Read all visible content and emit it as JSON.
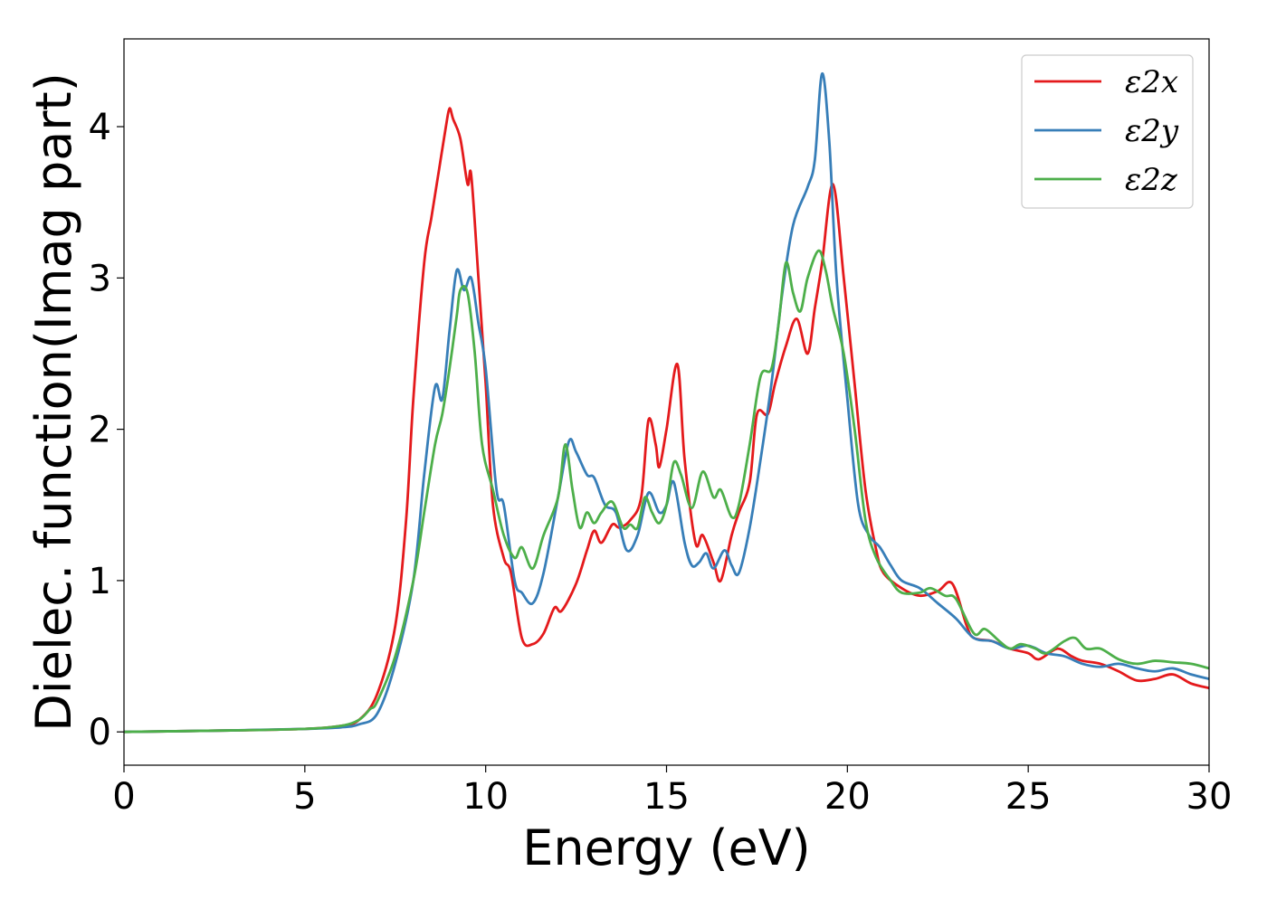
{
  "chart_data": {
    "type": "line",
    "title": "",
    "xlabel": "Energy (eV)",
    "ylabel": "Dielec. function(Imag part)",
    "xlim": [
      0,
      30
    ],
    "ylim": [
      -0.22,
      4.58
    ],
    "xticks": [
      0,
      5,
      10,
      15,
      20,
      25,
      30
    ],
    "xtick_labels": [
      "0",
      "5",
      "10",
      "15",
      "20",
      "25",
      "30"
    ],
    "yticks": [
      0,
      1,
      2,
      3,
      4
    ],
    "ytick_labels": [
      "0",
      "1",
      "2",
      "3",
      "4"
    ],
    "grid": false,
    "legend_position": "top-right",
    "series": [
      {
        "name": "ε2x",
        "color": "#e41a1c",
        "points": [
          [
            0,
            0
          ],
          [
            3,
            0.01
          ],
          [
            5,
            0.02
          ],
          [
            6,
            0.04
          ],
          [
            6.5,
            0.08
          ],
          [
            7,
            0.25
          ],
          [
            7.5,
            0.7
          ],
          [
            7.8,
            1.4
          ],
          [
            8,
            2.2
          ],
          [
            8.3,
            3.1
          ],
          [
            8.5,
            3.4
          ],
          [
            8.7,
            3.7
          ],
          [
            8.9,
            4.0
          ],
          [
            9.0,
            4.12
          ],
          [
            9.1,
            4.05
          ],
          [
            9.3,
            3.92
          ],
          [
            9.5,
            3.62
          ],
          [
            9.6,
            3.68
          ],
          [
            9.8,
            3.0
          ],
          [
            10.0,
            2.3
          ],
          [
            10.2,
            1.5
          ],
          [
            10.5,
            1.15
          ],
          [
            10.7,
            1.05
          ],
          [
            11.0,
            0.62
          ],
          [
            11.3,
            0.58
          ],
          [
            11.6,
            0.65
          ],
          [
            11.9,
            0.82
          ],
          [
            12.1,
            0.8
          ],
          [
            12.5,
            0.98
          ],
          [
            12.8,
            1.2
          ],
          [
            13.0,
            1.33
          ],
          [
            13.2,
            1.25
          ],
          [
            13.5,
            1.37
          ],
          [
            13.7,
            1.35
          ],
          [
            14.0,
            1.4
          ],
          [
            14.3,
            1.55
          ],
          [
            14.5,
            2.06
          ],
          [
            14.7,
            1.9
          ],
          [
            14.8,
            1.75
          ],
          [
            15.0,
            2.0
          ],
          [
            15.3,
            2.43
          ],
          [
            15.5,
            1.8
          ],
          [
            15.8,
            1.25
          ],
          [
            16.0,
            1.3
          ],
          [
            16.3,
            1.12
          ],
          [
            16.5,
            1.0
          ],
          [
            16.8,
            1.3
          ],
          [
            17.0,
            1.45
          ],
          [
            17.3,
            1.65
          ],
          [
            17.5,
            2.1
          ],
          [
            17.8,
            2.1
          ],
          [
            18.0,
            2.3
          ],
          [
            18.3,
            2.55
          ],
          [
            18.6,
            2.73
          ],
          [
            18.9,
            2.5
          ],
          [
            19.1,
            2.8
          ],
          [
            19.3,
            3.1
          ],
          [
            19.6,
            3.62
          ],
          [
            19.9,
            3.0
          ],
          [
            20.2,
            2.3
          ],
          [
            20.5,
            1.6
          ],
          [
            20.8,
            1.2
          ],
          [
            21.0,
            1.05
          ],
          [
            21.5,
            0.95
          ],
          [
            22.0,
            0.9
          ],
          [
            22.5,
            0.93
          ],
          [
            22.9,
            0.98
          ],
          [
            23.3,
            0.7
          ],
          [
            23.5,
            0.62
          ],
          [
            24.0,
            0.6
          ],
          [
            24.5,
            0.55
          ],
          [
            25.0,
            0.52
          ],
          [
            25.3,
            0.48
          ],
          [
            25.8,
            0.55
          ],
          [
            26.2,
            0.5
          ],
          [
            26.5,
            0.47
          ],
          [
            27.0,
            0.45
          ],
          [
            27.5,
            0.4
          ],
          [
            28.0,
            0.34
          ],
          [
            28.5,
            0.35
          ],
          [
            29.0,
            0.38
          ],
          [
            29.5,
            0.32
          ],
          [
            30.0,
            0.29
          ]
        ]
      },
      {
        "name": "ε2y",
        "color": "#377eb8",
        "points": [
          [
            0,
            0
          ],
          [
            3,
            0.01
          ],
          [
            5,
            0.02
          ],
          [
            6,
            0.03
          ],
          [
            6.5,
            0.05
          ],
          [
            7.0,
            0.12
          ],
          [
            7.5,
            0.45
          ],
          [
            8.0,
            1.0
          ],
          [
            8.3,
            1.7
          ],
          [
            8.6,
            2.28
          ],
          [
            8.8,
            2.2
          ],
          [
            9.0,
            2.65
          ],
          [
            9.2,
            3.05
          ],
          [
            9.4,
            2.92
          ],
          [
            9.6,
            3.0
          ],
          [
            9.8,
            2.7
          ],
          [
            10.0,
            2.4
          ],
          [
            10.3,
            1.6
          ],
          [
            10.5,
            1.5
          ],
          [
            10.8,
            1.0
          ],
          [
            11.0,
            0.92
          ],
          [
            11.3,
            0.85
          ],
          [
            11.6,
            1.05
          ],
          [
            12.0,
            1.55
          ],
          [
            12.3,
            1.92
          ],
          [
            12.5,
            1.85
          ],
          [
            12.8,
            1.7
          ],
          [
            13.0,
            1.68
          ],
          [
            13.3,
            1.5
          ],
          [
            13.6,
            1.45
          ],
          [
            13.9,
            1.2
          ],
          [
            14.2,
            1.3
          ],
          [
            14.5,
            1.58
          ],
          [
            14.8,
            1.45
          ],
          [
            15.0,
            1.5
          ],
          [
            15.2,
            1.65
          ],
          [
            15.5,
            1.25
          ],
          [
            15.7,
            1.1
          ],
          [
            15.9,
            1.12
          ],
          [
            16.1,
            1.18
          ],
          [
            16.3,
            1.08
          ],
          [
            16.6,
            1.2
          ],
          [
            16.8,
            1.1
          ],
          [
            17.0,
            1.05
          ],
          [
            17.3,
            1.35
          ],
          [
            17.6,
            1.8
          ],
          [
            17.9,
            2.3
          ],
          [
            18.2,
            2.9
          ],
          [
            18.5,
            3.35
          ],
          [
            18.9,
            3.6
          ],
          [
            19.1,
            3.78
          ],
          [
            19.3,
            4.35
          ],
          [
            19.5,
            3.9
          ],
          [
            19.7,
            3.0
          ],
          [
            20.0,
            2.2
          ],
          [
            20.3,
            1.5
          ],
          [
            20.6,
            1.3
          ],
          [
            20.9,
            1.22
          ],
          [
            21.2,
            1.1
          ],
          [
            21.5,
            1.0
          ],
          [
            22.0,
            0.95
          ],
          [
            22.5,
            0.85
          ],
          [
            23.0,
            0.75
          ],
          [
            23.5,
            0.62
          ],
          [
            24.0,
            0.6
          ],
          [
            24.5,
            0.55
          ],
          [
            25.0,
            0.57
          ],
          [
            25.5,
            0.52
          ],
          [
            26.0,
            0.5
          ],
          [
            26.5,
            0.45
          ],
          [
            27.0,
            0.43
          ],
          [
            27.5,
            0.45
          ],
          [
            28.0,
            0.42
          ],
          [
            28.5,
            0.4
          ],
          [
            29.0,
            0.42
          ],
          [
            29.5,
            0.38
          ],
          [
            30.0,
            0.35
          ]
        ]
      },
      {
        "name": "ε2z",
        "color": "#4daf4a",
        "points": [
          [
            0,
            0
          ],
          [
            3,
            0.01
          ],
          [
            5,
            0.02
          ],
          [
            6,
            0.04
          ],
          [
            6.5,
            0.08
          ],
          [
            6.8,
            0.15
          ],
          [
            7.0,
            0.2
          ],
          [
            7.5,
            0.5
          ],
          [
            8.0,
            1.0
          ],
          [
            8.3,
            1.45
          ],
          [
            8.6,
            1.9
          ],
          [
            8.8,
            2.1
          ],
          [
            9.0,
            2.4
          ],
          [
            9.2,
            2.75
          ],
          [
            9.3,
            2.92
          ],
          [
            9.5,
            2.9
          ],
          [
            9.7,
            2.5
          ],
          [
            9.9,
            1.9
          ],
          [
            10.2,
            1.6
          ],
          [
            10.5,
            1.3
          ],
          [
            10.8,
            1.15
          ],
          [
            11.0,
            1.22
          ],
          [
            11.3,
            1.08
          ],
          [
            11.6,
            1.3
          ],
          [
            12.0,
            1.55
          ],
          [
            12.2,
            1.9
          ],
          [
            12.4,
            1.6
          ],
          [
            12.6,
            1.35
          ],
          [
            12.8,
            1.45
          ],
          [
            13.0,
            1.38
          ],
          [
            13.2,
            1.45
          ],
          [
            13.5,
            1.52
          ],
          [
            13.8,
            1.35
          ],
          [
            14.0,
            1.37
          ],
          [
            14.2,
            1.35
          ],
          [
            14.4,
            1.55
          ],
          [
            14.6,
            1.45
          ],
          [
            14.8,
            1.38
          ],
          [
            15.0,
            1.5
          ],
          [
            15.2,
            1.78
          ],
          [
            15.4,
            1.7
          ],
          [
            15.7,
            1.48
          ],
          [
            16.0,
            1.72
          ],
          [
            16.3,
            1.55
          ],
          [
            16.5,
            1.6
          ],
          [
            16.8,
            1.42
          ],
          [
            17.0,
            1.5
          ],
          [
            17.3,
            1.9
          ],
          [
            17.6,
            2.35
          ],
          [
            17.9,
            2.4
          ],
          [
            18.1,
            2.7
          ],
          [
            18.3,
            3.1
          ],
          [
            18.5,
            2.9
          ],
          [
            18.7,
            2.78
          ],
          [
            18.9,
            3.0
          ],
          [
            19.2,
            3.18
          ],
          [
            19.4,
            3.05
          ],
          [
            19.6,
            2.8
          ],
          [
            19.9,
            2.5
          ],
          [
            20.2,
            2.0
          ],
          [
            20.5,
            1.4
          ],
          [
            20.8,
            1.15
          ],
          [
            21.2,
            1.0
          ],
          [
            21.5,
            0.92
          ],
          [
            22.0,
            0.92
          ],
          [
            22.3,
            0.95
          ],
          [
            22.7,
            0.9
          ],
          [
            23.0,
            0.88
          ],
          [
            23.5,
            0.65
          ],
          [
            23.8,
            0.68
          ],
          [
            24.2,
            0.6
          ],
          [
            24.5,
            0.55
          ],
          [
            24.8,
            0.58
          ],
          [
            25.2,
            0.55
          ],
          [
            25.5,
            0.52
          ],
          [
            26.0,
            0.6
          ],
          [
            26.3,
            0.62
          ],
          [
            26.6,
            0.55
          ],
          [
            27.0,
            0.55
          ],
          [
            27.5,
            0.48
          ],
          [
            28.0,
            0.45
          ],
          [
            28.5,
            0.47
          ],
          [
            29.0,
            0.46
          ],
          [
            29.5,
            0.45
          ],
          [
            30.0,
            0.42
          ]
        ]
      }
    ]
  }
}
